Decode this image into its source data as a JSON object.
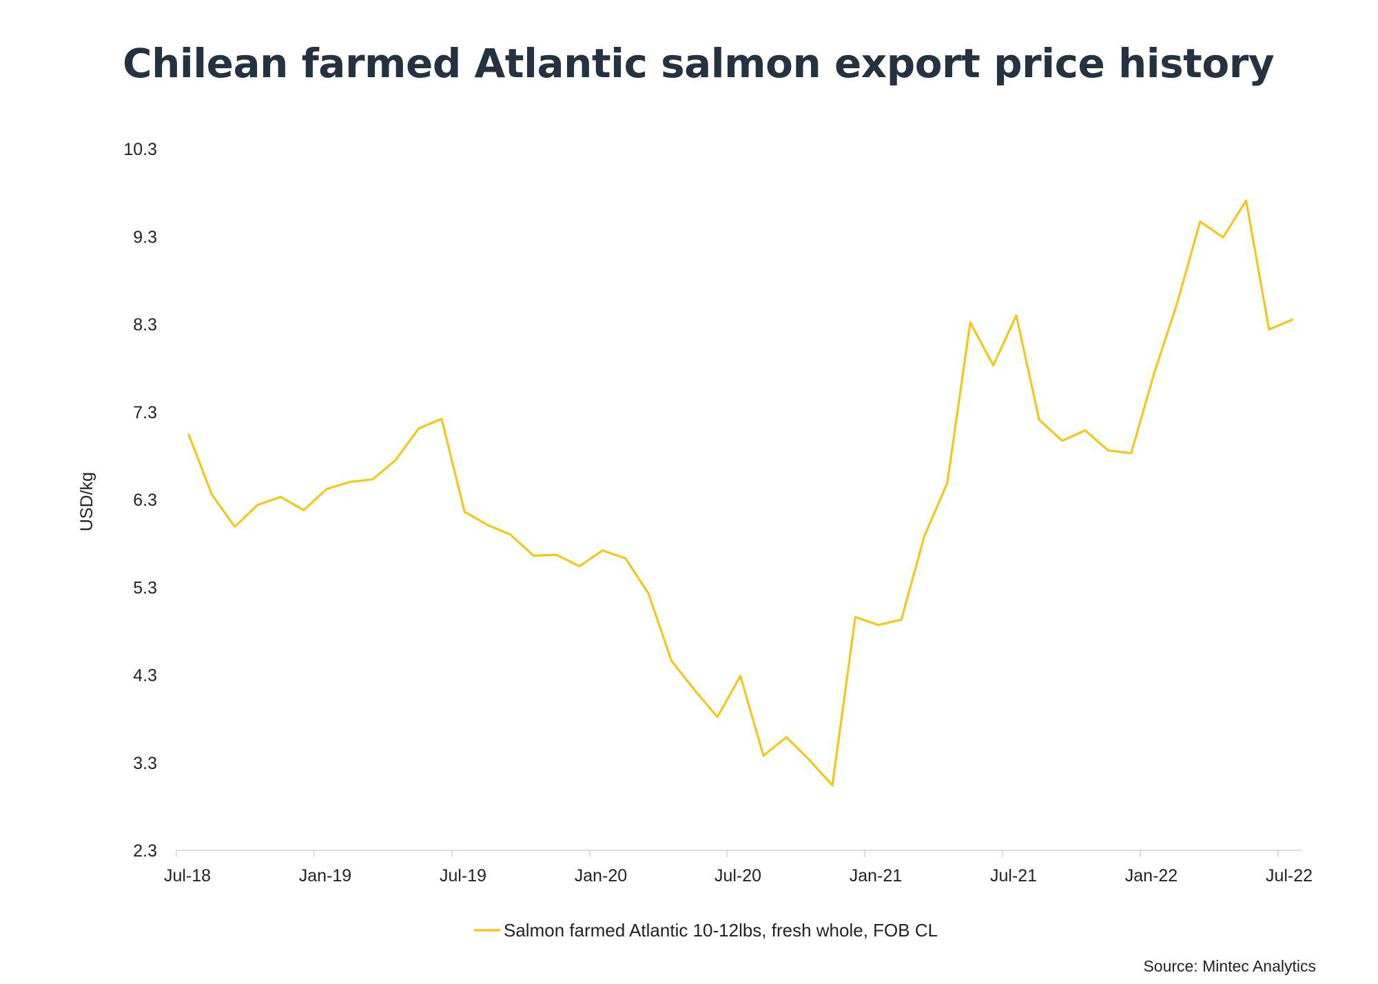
{
  "title": "Chilean farmed Atlantic salmon export price history",
  "source": "Source: Mintec Analytics",
  "chart_data": {
    "type": "line",
    "title": "Chilean farmed Atlantic salmon export price history",
    "ylabel": "USD/kg",
    "xlabel": "",
    "ylim": [
      2.3,
      10.3
    ],
    "yticks": [
      "10.3",
      "9.3",
      "8.3",
      "7.3",
      "6.3",
      "5.3",
      "4.3",
      "3.3",
      "2.3"
    ],
    "xtick_labels": [
      "Jul-18",
      "Jan-19",
      "Jul-19",
      "Jan-20",
      "Jul-20",
      "Jan-21",
      "Jul-21",
      "Jan-22",
      "Jul-22"
    ],
    "grid": false,
    "legend_position": "bottom",
    "series": [
      {
        "name": "Salmon farmed Atlantic 10-12lbs, fresh whole, FOB CL",
        "color": "#F5C518",
        "x": [
          "Jul-18",
          "Aug-18",
          "Sep-18",
          "Oct-18",
          "Nov-18",
          "Dec-18",
          "Jan-19",
          "Feb-19",
          "Mar-19",
          "Apr-19",
          "May-19",
          "Jun-19",
          "Jul-19",
          "Aug-19",
          "Sep-19",
          "Oct-19",
          "Nov-19",
          "Dec-19",
          "Jan-20",
          "Feb-20",
          "Mar-20",
          "Apr-20",
          "May-20",
          "Jun-20",
          "Jul-20",
          "Aug-20",
          "Sep-20",
          "Oct-20",
          "Nov-20",
          "Dec-20",
          "Jan-21",
          "Feb-21",
          "Mar-21",
          "Apr-21",
          "May-21",
          "Jun-21",
          "Jul-21",
          "Aug-21",
          "Sep-21",
          "Oct-21",
          "Nov-21",
          "Dec-21",
          "Jan-22",
          "Feb-22",
          "Mar-22",
          "Apr-22",
          "May-22",
          "Jun-22",
          "Jul-22"
        ],
        "values": [
          7.04,
          6.36,
          5.99,
          6.24,
          6.33,
          6.18,
          6.42,
          6.5,
          6.53,
          6.75,
          7.11,
          7.22,
          6.16,
          6.01,
          5.9,
          5.66,
          5.67,
          5.54,
          5.72,
          5.63,
          5.23,
          4.46,
          4.13,
          3.82,
          4.29,
          3.38,
          3.59,
          3.33,
          3.04,
          4.96,
          4.87,
          4.93,
          5.88,
          6.49,
          8.32,
          7.83,
          8.4,
          7.21,
          6.97,
          7.09,
          6.86,
          6.83,
          7.74,
          8.54,
          9.47,
          9.29,
          9.71,
          8.24,
          8.35
        ]
      }
    ]
  }
}
